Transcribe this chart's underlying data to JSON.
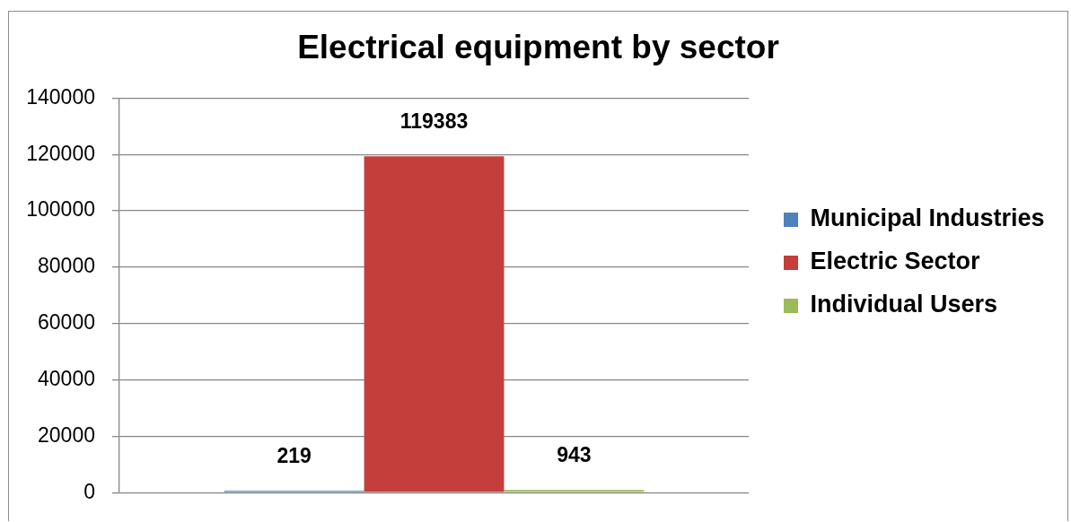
{
  "chart_data": {
    "type": "bar",
    "title": "Electrical equipment by sector",
    "categories": [
      null
    ],
    "series": [
      {
        "name": "Municipal Industries",
        "color": "#4f81bd",
        "values": [
          219
        ]
      },
      {
        "name": "Electric Sector",
        "color": "#c43e3b",
        "values": [
          119383
        ]
      },
      {
        "name": "Individual Users",
        "color": "#9bbb59",
        "values": [
          943
        ]
      }
    ],
    "ylim": [
      0,
      140000
    ],
    "yticks": [
      0,
      20000,
      40000,
      60000,
      80000,
      100000,
      120000,
      140000
    ],
    "grid": "y",
    "legend": "right",
    "data_labels": true
  }
}
